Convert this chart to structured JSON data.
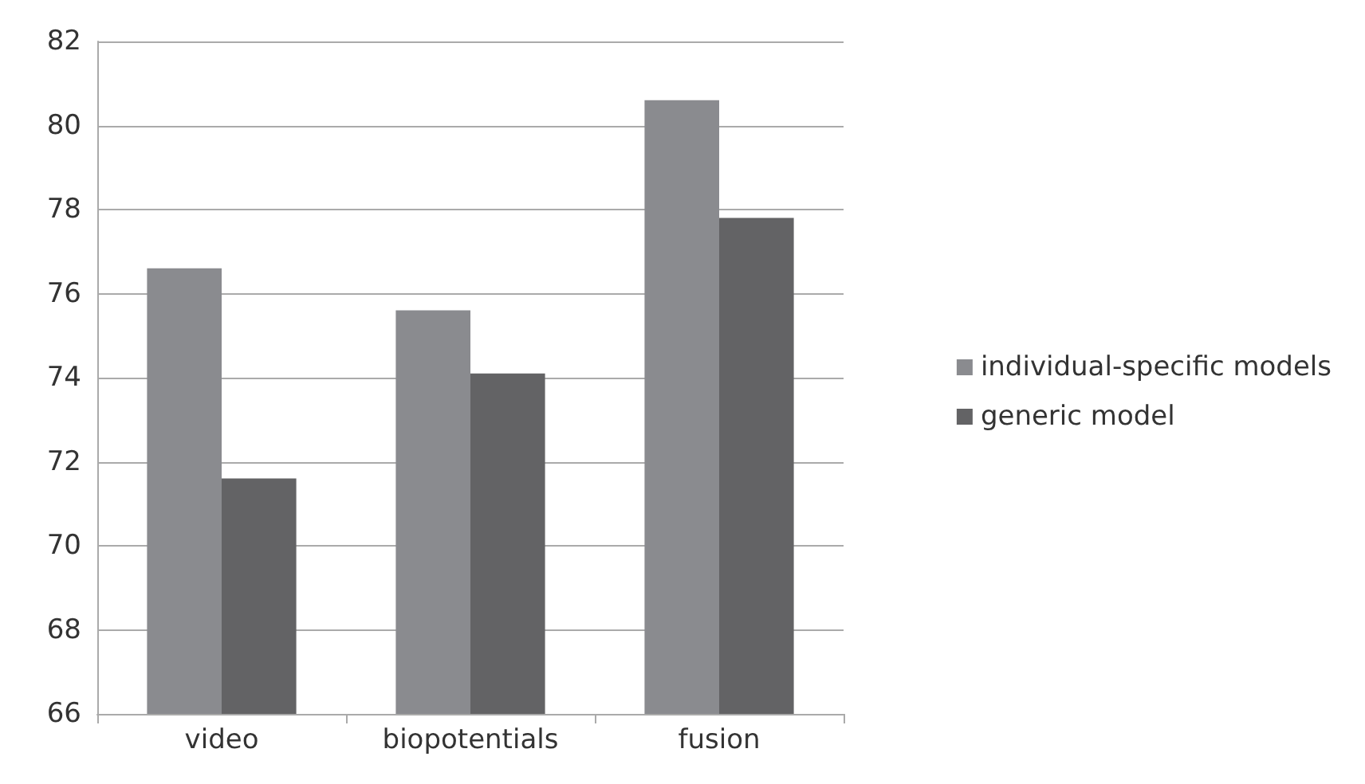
{
  "chart_data": {
    "type": "bar",
    "categories": [
      "video",
      "biopotentials",
      "fusion"
    ],
    "series": [
      {
        "name": "individual-specific models",
        "color": "#8a8b8f",
        "values": [
          76.6,
          75.6,
          80.6
        ]
      },
      {
        "name": "generic model",
        "color": "#636365",
        "values": [
          71.6,
          74.1,
          77.8
        ]
      }
    ],
    "ylim": [
      66,
      82
    ],
    "yticks": [
      66,
      68,
      70,
      72,
      74,
      76,
      78,
      80,
      82
    ],
    "grid": "y",
    "legend": "right"
  }
}
